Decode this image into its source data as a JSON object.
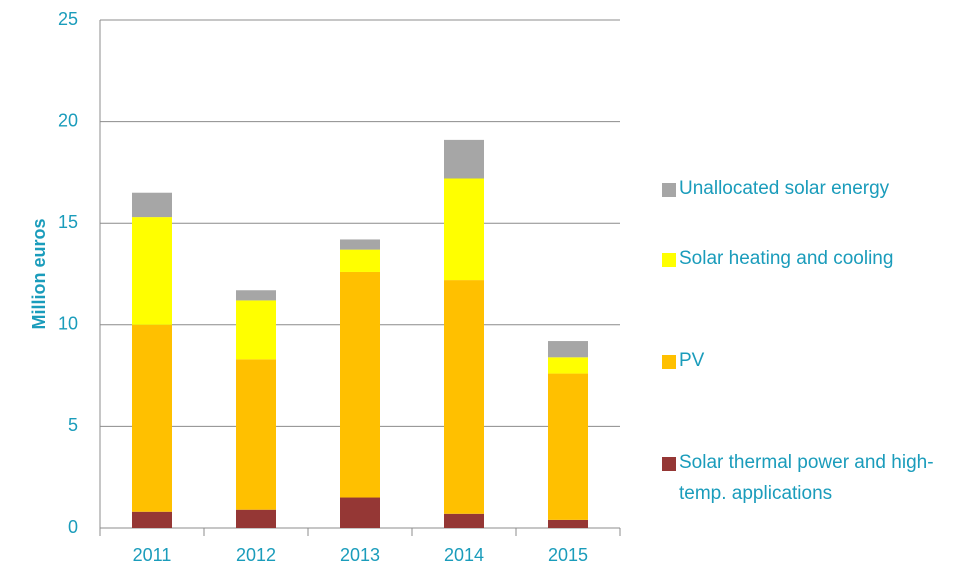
{
  "chart_data": {
    "type": "stacked_bar",
    "categories": [
      "2011",
      "2012",
      "2013",
      "2014",
      "2015"
    ],
    "y_label": "Million euros",
    "series": [
      {
        "name": "Solar thermal power and high-temp. applications",
        "color": "#953735",
        "values": [
          0.8,
          0.9,
          1.5,
          0.7,
          0.4
        ]
      },
      {
        "name": "PV",
        "color": "#ffc000",
        "values": [
          9.2,
          7.4,
          11.1,
          11.5,
          7.2
        ]
      },
      {
        "name": "Solar heating and cooling",
        "color": "#ffff00",
        "values": [
          5.3,
          2.9,
          1.1,
          5.0,
          0.8
        ]
      },
      {
        "name": "Unallocated solar energy",
        "color": "#a6a6a6",
        "values": [
          1.2,
          0.5,
          0.5,
          1.9,
          0.8
        ]
      }
    ],
    "ylim": [
      0,
      25
    ],
    "yticks": [
      0,
      5,
      10,
      15,
      20,
      25
    ],
    "grid": true,
    "legend": "right"
  }
}
